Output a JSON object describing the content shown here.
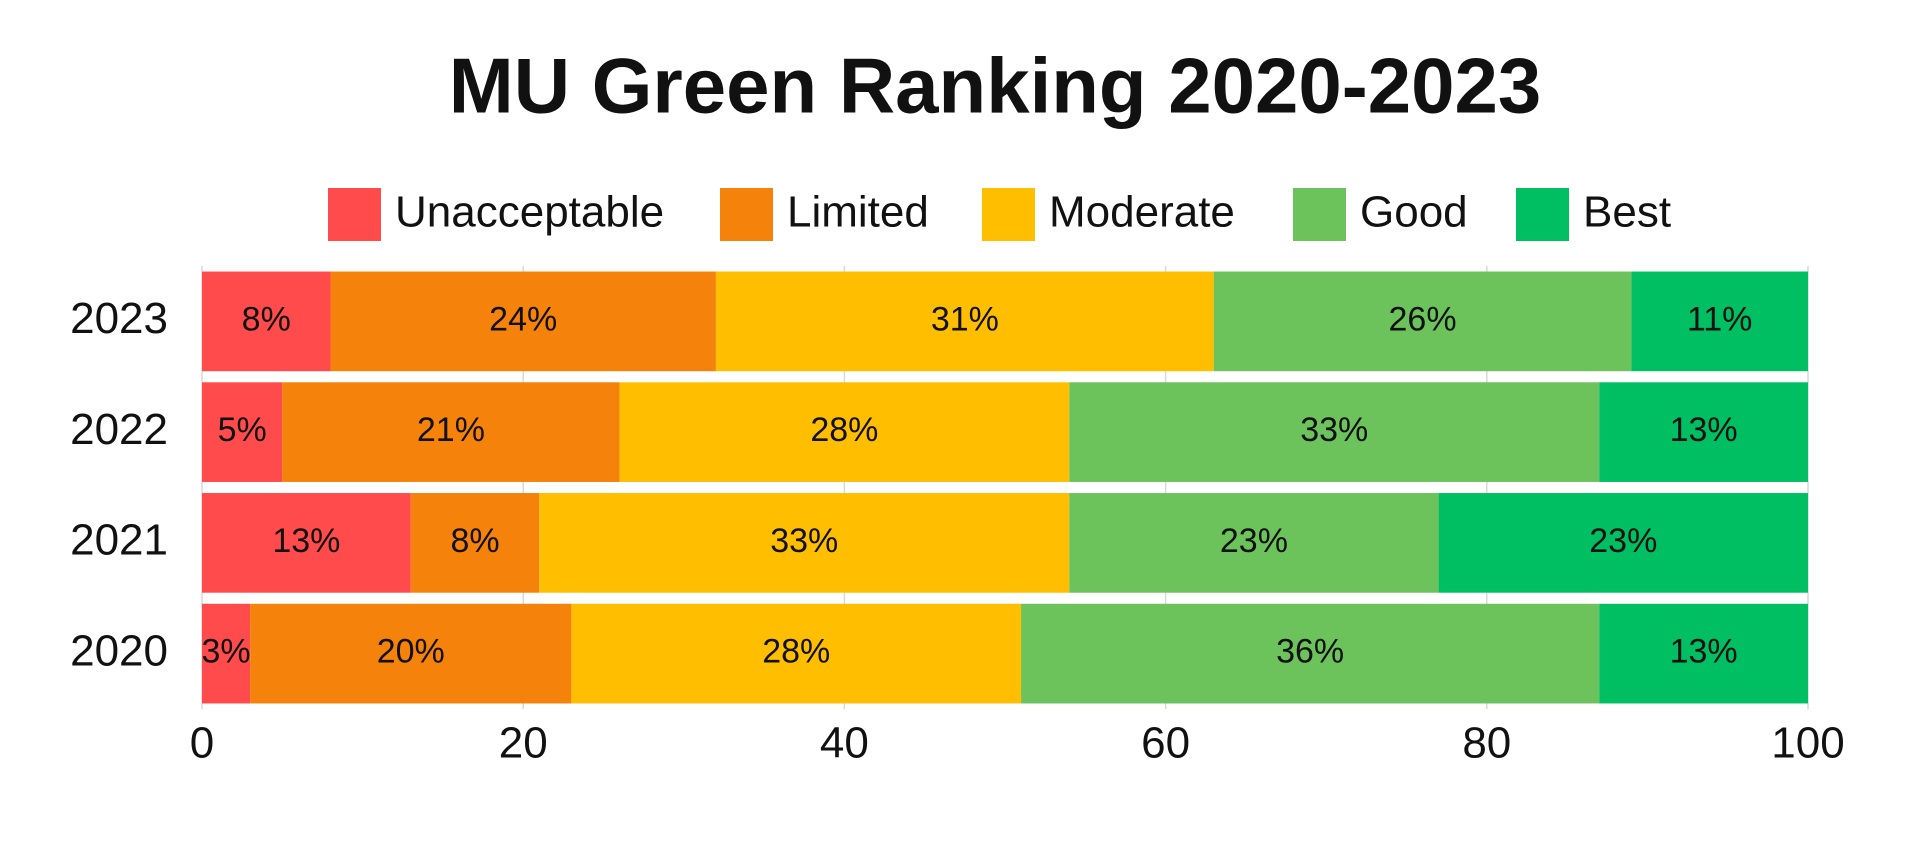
{
  "chart_data": {
    "type": "stacked-bar-horizontal",
    "title": "MU Green Ranking 2020-2023",
    "categories": [
      "2020",
      "2021",
      "2022",
      "2023"
    ],
    "series": [
      {
        "name": "Unacceptable",
        "color": "#ff4b4b",
        "values": [
          3,
          13,
          5,
          8
        ],
        "value_labels": [
          "3%",
          "13%",
          "5%",
          "8%"
        ]
      },
      {
        "name": "Limited",
        "color": "#f5820a",
        "values": [
          20,
          8,
          21,
          24
        ],
        "value_labels": [
          "20%",
          "8%",
          "21%",
          "24%"
        ]
      },
      {
        "name": "Moderate",
        "color": "#ffbe00",
        "values": [
          28,
          33,
          28,
          31
        ],
        "value_labels": [
          "28%",
          "33%",
          "28%",
          "31%"
        ]
      },
      {
        "name": "Good",
        "color": "#6cc35c",
        "values": [
          36,
          23,
          33,
          26
        ],
        "value_labels": [
          "36%",
          "23%",
          "33%",
          "26%"
        ]
      },
      {
        "name": "Best",
        "color": "#00bf63",
        "values": [
          13,
          23,
          13,
          11
        ],
        "value_labels": [
          "13%",
          "23%",
          "13%",
          "11%"
        ]
      }
    ],
    "xlim": [
      0,
      100
    ],
    "xticks": [
      0,
      20,
      40,
      60,
      80,
      100
    ],
    "grid": true,
    "legend": "top"
  }
}
